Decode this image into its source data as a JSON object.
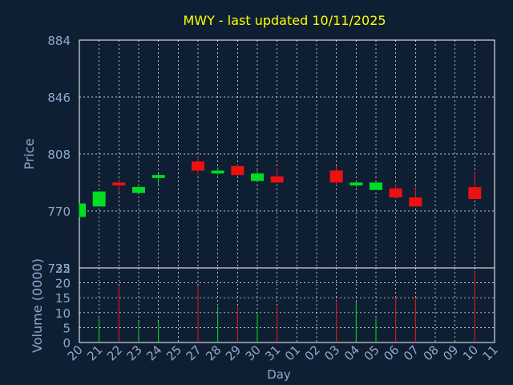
{
  "title": "MWY - last updated 10/11/2025",
  "colors": {
    "background": "#0f1f33",
    "frame": "#ffffff",
    "grid": "#ffffff",
    "title": "#ffff00",
    "axis_text": "#8fa9cc",
    "up": "#00dd22",
    "down": "#ee1111"
  },
  "chart_data": [
    {
      "type": "candlestick",
      "ylabel": "Price",
      "ylim": [
        732,
        884
      ],
      "yticks": [
        732,
        770,
        808,
        846,
        884
      ],
      "grid": true,
      "x": [
        "20",
        "21",
        "22",
        "23",
        "24",
        "25",
        "27",
        "28",
        "29",
        "30",
        "31",
        "01",
        "02",
        "03",
        "04",
        "05",
        "06",
        "07",
        "08",
        "09",
        "10",
        "11"
      ],
      "candles": [
        {
          "x": "20",
          "open": 766,
          "high": 775,
          "low": 766,
          "close": 775
        },
        {
          "x": "21",
          "open": 773,
          "high": 783,
          "low": 773,
          "close": 783
        },
        {
          "x": "22",
          "open": 789,
          "high": 791,
          "low": 782,
          "close": 787
        },
        {
          "x": "23",
          "open": 782,
          "high": 787,
          "low": 782,
          "close": 786
        },
        {
          "x": "24",
          "open": 792,
          "high": 795,
          "low": 788,
          "close": 794
        },
        {
          "x": "27",
          "open": 803,
          "high": 806,
          "low": 794,
          "close": 797
        },
        {
          "x": "28",
          "open": 795,
          "high": 799,
          "low": 794,
          "close": 797
        },
        {
          "x": "29",
          "open": 800,
          "high": 801,
          "low": 793,
          "close": 794
        },
        {
          "x": "30",
          "open": 790,
          "high": 797,
          "low": 790,
          "close": 795
        },
        {
          "x": "31",
          "open": 793,
          "high": 799,
          "low": 789,
          "close": 789
        },
        {
          "x": "03",
          "open": 797,
          "high": 800,
          "low": 787,
          "close": 789
        },
        {
          "x": "04",
          "open": 787,
          "high": 790,
          "low": 786,
          "close": 789
        },
        {
          "x": "05",
          "open": 784,
          "high": 789,
          "low": 784,
          "close": 789
        },
        {
          "x": "06",
          "open": 785,
          "high": 788,
          "low": 778,
          "close": 779
        },
        {
          "x": "07",
          "open": 779,
          "high": 786,
          "low": 773,
          "close": 773
        },
        {
          "x": "10",
          "open": 786,
          "high": 796,
          "low": 778,
          "close": 778
        }
      ]
    },
    {
      "type": "bar",
      "ylabel": "Volume (0000)",
      "xlabel": "Day",
      "ylim": [
        0,
        25
      ],
      "yticks": [
        0,
        5,
        10,
        15,
        20,
        25
      ],
      "grid": true,
      "bars": [
        {
          "x": "21",
          "value": 8,
          "direction": "up"
        },
        {
          "x": "22",
          "value": 19,
          "direction": "down"
        },
        {
          "x": "23",
          "value": 7,
          "direction": "up"
        },
        {
          "x": "24",
          "value": 7,
          "direction": "up"
        },
        {
          "x": "27",
          "value": 19,
          "direction": "down"
        },
        {
          "x": "28",
          "value": 12,
          "direction": "up"
        },
        {
          "x": "29",
          "value": 12,
          "direction": "down"
        },
        {
          "x": "30",
          "value": 10,
          "direction": "up"
        },
        {
          "x": "31",
          "value": 12,
          "direction": "down"
        },
        {
          "x": "03",
          "value": 14,
          "direction": "down"
        },
        {
          "x": "04",
          "value": 14,
          "direction": "up"
        },
        {
          "x": "05",
          "value": 8,
          "direction": "up"
        },
        {
          "x": "06",
          "value": 15,
          "direction": "down"
        },
        {
          "x": "07",
          "value": 15,
          "direction": "down"
        },
        {
          "x": "10",
          "value": 24,
          "direction": "down"
        }
      ]
    }
  ]
}
